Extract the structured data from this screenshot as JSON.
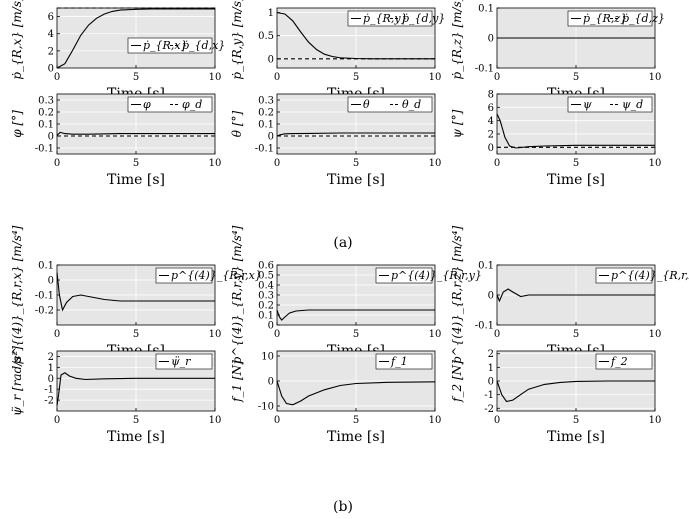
{
  "colors": {
    "plot_bg": "#e6e6e6",
    "line": "#000000",
    "grid": "#ffffff"
  },
  "captions": {
    "a": "(a)",
    "b": "(b)"
  },
  "chart_data": [
    {
      "id": "vx",
      "type": "line",
      "xlabel": "Time [s]",
      "ylabel": "ṗ_{R,x}",
      "yunit": "[m/s]",
      "xlim": [
        0,
        10
      ],
      "ylim": [
        0,
        7
      ],
      "xticks": [
        0,
        5,
        10
      ],
      "yticks": [
        0,
        2,
        4,
        6
      ],
      "grid": true,
      "legend_position": "right",
      "series": [
        {
          "name": "ṗ_{R,x}",
          "style": "solid",
          "x": [
            0,
            0.5,
            1,
            1.5,
            2,
            2.5,
            3,
            3.5,
            4,
            5,
            6,
            7,
            8,
            9,
            10
          ],
          "y": [
            0,
            0.5,
            2.1,
            3.8,
            5.0,
            5.8,
            6.3,
            6.6,
            6.75,
            6.85,
            6.9,
            6.9,
            6.9,
            6.9,
            6.9
          ]
        },
        {
          "name": "ṗ_{d,x}",
          "style": "dashed",
          "x": [
            0,
            10
          ],
          "y": [
            7,
            7
          ]
        }
      ]
    },
    {
      "id": "vy",
      "type": "line",
      "xlabel": "Time [s]",
      "ylabel": "ṗ_{R,y}",
      "yunit": "[m/s]",
      "xlim": [
        0,
        10
      ],
      "ylim": [
        -0.2,
        1.1
      ],
      "xticks": [
        0,
        5,
        10
      ],
      "yticks": [
        0,
        0.5,
        1
      ],
      "grid": true,
      "legend_position": "top-right",
      "series": [
        {
          "name": "ṗ_{R,y}",
          "style": "solid",
          "x": [
            0,
            0.5,
            1,
            1.5,
            2,
            2.5,
            3,
            3.5,
            4,
            5,
            6,
            7,
            8,
            9,
            10
          ],
          "y": [
            1,
            0.97,
            0.82,
            0.58,
            0.36,
            0.2,
            0.1,
            0.05,
            0.02,
            0.005,
            0,
            0,
            0,
            0,
            0
          ]
        },
        {
          "name": "ṗ_{d,y}",
          "style": "dashed",
          "x": [
            0,
            10
          ],
          "y": [
            0,
            0
          ]
        }
      ]
    },
    {
      "id": "vz",
      "type": "line",
      "xlabel": "Time [s]",
      "ylabel": "ṗ_{R,z}",
      "yunit": "[m/s]",
      "xlim": [
        0,
        10
      ],
      "ylim": [
        -0.1,
        0.1
      ],
      "xticks": [
        0,
        5,
        10
      ],
      "yticks": [
        -0.1,
        0,
        0.1
      ],
      "grid": true,
      "legend_position": "top-right",
      "series": [
        {
          "name": "ṗ_{R,z}",
          "style": "solid",
          "x": [
            0,
            10
          ],
          "y": [
            0,
            0
          ]
        },
        {
          "name": "ṗ_{d,z}",
          "style": "dashed",
          "x": [
            0,
            10
          ],
          "y": [
            0,
            0
          ]
        }
      ]
    },
    {
      "id": "phi",
      "type": "line",
      "xlabel": "Time [s]",
      "ylabel": "φ",
      "yunit": "[°]",
      "xlim": [
        0,
        10
      ],
      "ylim": [
        -0.15,
        0.35
      ],
      "xticks": [
        0,
        5,
        10
      ],
      "yticks": [
        -0.1,
        0,
        0.1,
        0.2,
        0.3
      ],
      "grid": true,
      "legend_position": "top-right",
      "series": [
        {
          "name": "φ",
          "style": "solid",
          "x": [
            0,
            0.2,
            0.5,
            1,
            2,
            4,
            6,
            8,
            10
          ],
          "y": [
            0.005,
            0.03,
            0.02,
            0.015,
            0.015,
            0.02,
            0.02,
            0.02,
            0.02
          ]
        },
        {
          "name": "φ_d",
          "style": "dashed",
          "x": [
            0,
            10
          ],
          "y": [
            0,
            0
          ]
        }
      ]
    },
    {
      "id": "theta",
      "type": "line",
      "xlabel": "Time [s]",
      "ylabel": "θ",
      "yunit": "[°]",
      "xlim": [
        0,
        10
      ],
      "ylim": [
        -0.15,
        0.35
      ],
      "xticks": [
        0,
        5,
        10
      ],
      "yticks": [
        -0.1,
        0,
        0.1,
        0.2,
        0.3
      ],
      "grid": true,
      "legend_position": "top-right",
      "series": [
        {
          "name": "θ",
          "style": "solid",
          "x": [
            0,
            0.2,
            0.5,
            1,
            2,
            4,
            6,
            8,
            10
          ],
          "y": [
            0,
            0.01,
            0.018,
            0.02,
            0.022,
            0.025,
            0.025,
            0.025,
            0.025
          ]
        },
        {
          "name": "θ_d",
          "style": "dashed",
          "x": [
            0,
            10
          ],
          "y": [
            0,
            0
          ]
        }
      ]
    },
    {
      "id": "psi",
      "type": "line",
      "xlabel": "Time [s]",
      "ylabel": "ψ",
      "yunit": "[°]",
      "xlim": [
        0,
        10
      ],
      "ylim": [
        -1,
        8
      ],
      "xticks": [
        0,
        5,
        10
      ],
      "yticks": [
        0,
        2,
        4,
        6,
        8
      ],
      "grid": true,
      "legend_position": "top-right",
      "series": [
        {
          "name": "ψ",
          "style": "solid",
          "x": [
            0,
            0.2,
            0.5,
            0.8,
            1.2,
            2,
            3,
            5,
            7,
            10
          ],
          "y": [
            5,
            4,
            1.5,
            0.2,
            -0.1,
            0.1,
            0.2,
            0.3,
            0.3,
            0.3
          ]
        },
        {
          "name": "ψ_d",
          "style": "dashed",
          "x": [
            0,
            10
          ],
          "y": [
            0,
            0
          ]
        }
      ]
    },
    {
      "id": "jx",
      "type": "line",
      "xlabel": "Time [s]",
      "ylabel": "p^{(4)}_{R,r,x}",
      "yunit": "[m/s⁴]",
      "xlim": [
        0,
        10
      ],
      "ylim": [
        -0.3,
        0.1
      ],
      "xticks": [
        0,
        5,
        10
      ],
      "yticks": [
        -0.2,
        -0.1,
        0,
        0.1
      ],
      "grid": true,
      "legend_position": "top-right",
      "series": [
        {
          "name": "p^{(4)}_{R,r,x}",
          "style": "solid",
          "x": [
            0,
            0.15,
            0.35,
            0.6,
            1,
            1.5,
            2,
            3,
            4,
            5,
            7,
            10
          ],
          "y": [
            0.05,
            -0.1,
            -0.2,
            -0.15,
            -0.11,
            -0.1,
            -0.11,
            -0.13,
            -0.14,
            -0.14,
            -0.14,
            -0.14
          ]
        }
      ]
    },
    {
      "id": "jy",
      "type": "line",
      "xlabel": "Time [s]",
      "ylabel": "p^{(4)}_{R,r,y}",
      "yunit": "[m/s⁴]",
      "xlim": [
        0,
        10
      ],
      "ylim": [
        0,
        0.6
      ],
      "xticks": [
        0,
        5,
        10
      ],
      "yticks": [
        0,
        0.1,
        0.2,
        0.3,
        0.4,
        0.5,
        0.6
      ],
      "grid": true,
      "legend_position": "top-right",
      "series": [
        {
          "name": "p^{(4)}_{R,r,y}",
          "style": "solid",
          "x": [
            0,
            0.15,
            0.3,
            0.5,
            0.8,
            1.2,
            2,
            3,
            5,
            10
          ],
          "y": [
            0.15,
            0.08,
            0.05,
            0.08,
            0.12,
            0.14,
            0.15,
            0.15,
            0.15,
            0.15
          ]
        }
      ]
    },
    {
      "id": "jz",
      "type": "line",
      "xlabel": "Time [s]",
      "ylabel": "p^{(4)}_{R,r,z}",
      "yunit": "[m/s⁴]",
      "xlim": [
        0,
        10
      ],
      "ylim": [
        -0.1,
        0.1
      ],
      "xticks": [
        0,
        5,
        10
      ],
      "yticks": [
        -0.1,
        0,
        0.1
      ],
      "grid": true,
      "legend_position": "top-right",
      "series": [
        {
          "name": "p^{(4)}_{R,r,z}",
          "style": "solid",
          "x": [
            0,
            0.15,
            0.4,
            0.7,
            1,
            1.5,
            2,
            3,
            5,
            10
          ],
          "y": [
            0,
            -0.02,
            0.01,
            0.02,
            0.01,
            -0.005,
            0,
            0,
            0,
            0
          ]
        }
      ]
    },
    {
      "id": "psiddot",
      "type": "line",
      "xlabel": "Time [s]",
      "ylabel": "ψ̈_r",
      "yunit": "[rad/s²]",
      "xlim": [
        0,
        10
      ],
      "ylim": [
        -3,
        2.5
      ],
      "xticks": [
        0,
        5,
        10
      ],
      "yticks": [
        -2,
        -1,
        0,
        1,
        2
      ],
      "grid": true,
      "legend_position": "top-right",
      "series": [
        {
          "name": "ψ̈_r",
          "style": "solid",
          "x": [
            0,
            0.1,
            0.25,
            0.5,
            0.8,
            1.2,
            1.8,
            3,
            5,
            10
          ],
          "y": [
            -2.5,
            -1.5,
            0.3,
            0.5,
            0.2,
            0,
            -0.1,
            -0.05,
            0,
            0
          ]
        }
      ]
    },
    {
      "id": "f1",
      "type": "line",
      "xlabel": "Time [s]",
      "ylabel": "f_1",
      "yunit": "[N]",
      "xlim": [
        0,
        10
      ],
      "ylim": [
        -12,
        12
      ],
      "xticks": [
        0,
        5,
        10
      ],
      "yticks": [
        -10,
        0,
        10
      ],
      "grid": true,
      "legend_position": "top-right",
      "series": [
        {
          "name": "f_1",
          "style": "solid",
          "x": [
            0,
            0.3,
            0.6,
            1,
            1.5,
            2,
            3,
            4,
            5,
            7,
            10
          ],
          "y": [
            0,
            -6,
            -9,
            -9.5,
            -8,
            -6,
            -3.5,
            -1.8,
            -1,
            -0.5,
            -0.3
          ]
        }
      ]
    },
    {
      "id": "f2",
      "type": "line",
      "xlabel": "Time [s]",
      "ylabel": "f_2",
      "yunit": "[N]",
      "xlim": [
        0,
        10
      ],
      "ylim": [
        -2.2,
        2.2
      ],
      "xticks": [
        0,
        5,
        10
      ],
      "yticks": [
        -2,
        -1,
        0,
        1,
        2
      ],
      "grid": true,
      "legend_position": "top-right",
      "series": [
        {
          "name": "f_2",
          "style": "solid",
          "x": [
            0,
            0.3,
            0.6,
            1,
            1.5,
            2,
            3,
            4,
            5,
            7,
            10
          ],
          "y": [
            0,
            -1,
            -1.5,
            -1.4,
            -1.0,
            -0.6,
            -0.25,
            -0.1,
            -0.03,
            0,
            0
          ]
        }
      ]
    }
  ]
}
